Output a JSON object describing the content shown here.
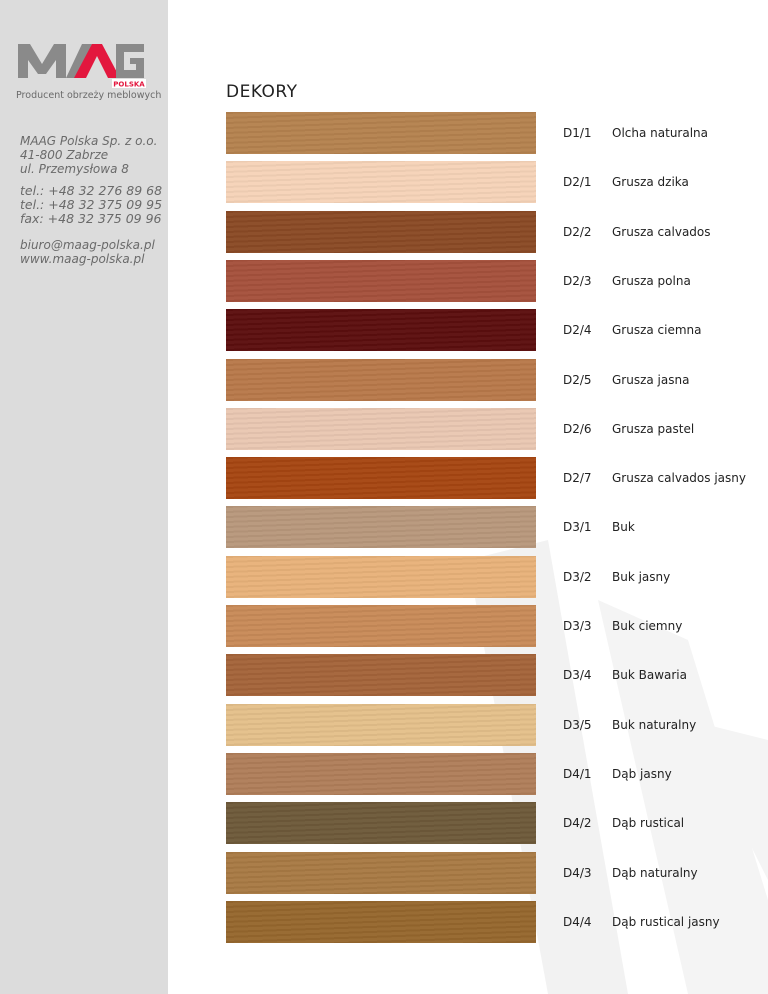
{
  "brand": {
    "logo_text": "MAAG",
    "logo_sub": "POLSKA",
    "tagline": "Producent obrzeży meblowych",
    "accent": "#e3173e",
    "logo_gray": "#8a8a8a"
  },
  "contact": {
    "address": [
      "MAAG Polska Sp. z o.o.",
      "41-800 Zabrze",
      "ul. Przemysłowa 8"
    ],
    "phones": [
      "tel.: +48 32 276 89 68",
      "tel.: +48 32 375 09 95",
      "fax: +48 32 375 09 96"
    ],
    "web": [
      "biuro@maag-polska.pl",
      "www.maag-polska.pl"
    ]
  },
  "title": "DEKORY",
  "decors": [
    {
      "code": "D1/1",
      "name": "Olcha naturalna",
      "color": "#b5824f"
    },
    {
      "code": "D2/1",
      "name": "Grusza dzika",
      "color": "#f6d3b8"
    },
    {
      "code": "D2/2",
      "name": "Grusza calvados",
      "color": "#8a4a25"
    },
    {
      "code": "D2/3",
      "name": "Grusza polna",
      "color": "#a5513c"
    },
    {
      "code": "D2/4",
      "name": "Grusza ciemna",
      "color": "#5c0e0e"
    },
    {
      "code": "D2/5",
      "name": "Grusza jasna",
      "color": "#b8794a"
    },
    {
      "code": "D2/6",
      "name": "Grusza pastel",
      "color": "#e9c7b2"
    },
    {
      "code": "D2/7",
      "name": "Grusza calvados jasny",
      "color": "#a64612"
    },
    {
      "code": "D3/1",
      "name": "Buk",
      "color": "#b8987c"
    },
    {
      "code": "D3/2",
      "name": "Buk jasny",
      "color": "#e8b27a"
    },
    {
      "code": "D3/3",
      "name": "Buk ciemny",
      "color": "#c88a58"
    },
    {
      "code": "D3/4",
      "name": "Buk Bawaria",
      "color": "#a4643a"
    },
    {
      "code": "D3/5",
      "name": "Buk naturalny",
      "color": "#e4c08a"
    },
    {
      "code": "D4/1",
      "name": "Dąb jasny",
      "color": "#b07e5a"
    },
    {
      "code": "D4/2",
      "name": "Dąb rustical",
      "color": "#6e5a3a"
    },
    {
      "code": "D4/3",
      "name": "Dąb naturalny",
      "color": "#a87a44"
    },
    {
      "code": "D4/4",
      "name": "Dąb rustical jasny",
      "color": "#96672e"
    }
  ]
}
